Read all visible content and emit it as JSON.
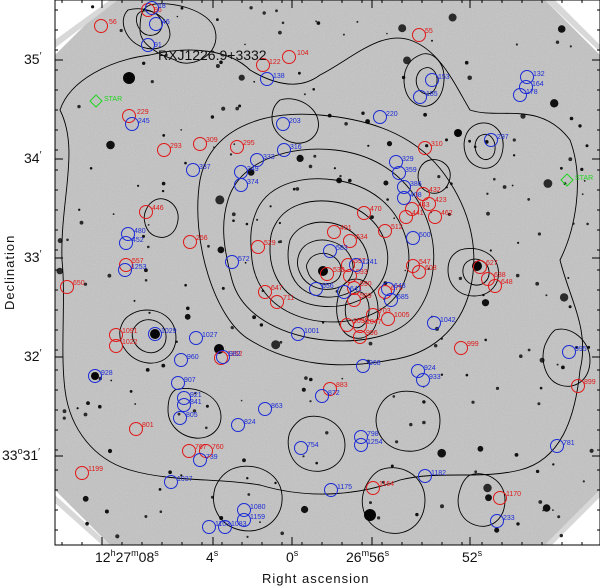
{
  "figure_title": "RXJ1226.9+3332",
  "axes": {
    "x_label": "Right ascension",
    "y_label": "Declination",
    "x_ticks": [
      {
        "prefix": "12",
        "h": "h",
        "m_val": "27",
        "m": "m",
        "s_val": "08",
        "s": "s"
      },
      {
        "text": "4",
        "sup": "s"
      },
      {
        "text": "0",
        "sup": "s"
      },
      {
        "prefix": "26",
        "m": "m",
        "s_val": "56",
        "s": "s"
      },
      {
        "text": "52",
        "sup": "s"
      }
    ],
    "y_ticks": [
      {
        "text": "35",
        "sup": "′"
      },
      {
        "text": "34",
        "sup": "′"
      },
      {
        "text": "33",
        "sup": "′"
      },
      {
        "text": "32",
        "sup": "′"
      },
      {
        "text": "33",
        "deg": "o",
        "rest": "31",
        "sup": "′"
      }
    ]
  },
  "colors": {
    "red": "#e01818",
    "blue": "#1a2bd6",
    "green": "#22d422",
    "contour": "#000000",
    "sky": "#b9b9b9"
  },
  "markers": {
    "red": [
      "56",
      "96",
      "104",
      "122",
      "229",
      "293",
      "309",
      "295",
      "446",
      "529",
      "530",
      "557",
      "597",
      "593",
      "634",
      "650",
      "647",
      "711",
      "590",
      "589",
      "703",
      "675",
      "1005",
      "1035",
      "1047",
      "1091",
      "1022",
      "1252",
      "996",
      "999",
      "883",
      "801",
      "767",
      "760",
      "899",
      "1199",
      "1164",
      "1170",
      "470",
      "443",
      "441",
      "462",
      "432",
      "423",
      "608",
      "627",
      "638",
      "648",
      "491",
      "512",
      "547",
      "256",
      "55",
      "310"
    ],
    "blue": [
      "18",
      "46",
      "91",
      "138",
      "203",
      "220",
      "185",
      "153",
      "132",
      "164",
      "178",
      "245",
      "297",
      "337",
      "349",
      "333",
      "316",
      "329",
      "359",
      "386",
      "408",
      "374",
      "480",
      "452",
      "500",
      "572",
      "1253",
      "583",
      "656",
      "641",
      "1241",
      "648",
      "685",
      "1001",
      "1042",
      "1029",
      "1027",
      "960",
      "982",
      "928",
      "907",
      "921",
      "841",
      "805",
      "824",
      "863",
      "872",
      "968",
      "924",
      "933",
      "754",
      "798",
      "1254",
      "995",
      "781",
      "739",
      "1037",
      "1175",
      "1182",
      "1080",
      "1159",
      "1103",
      "1083",
      "233"
    ],
    "green": [
      "STAR",
      "STAR"
    ]
  }
}
